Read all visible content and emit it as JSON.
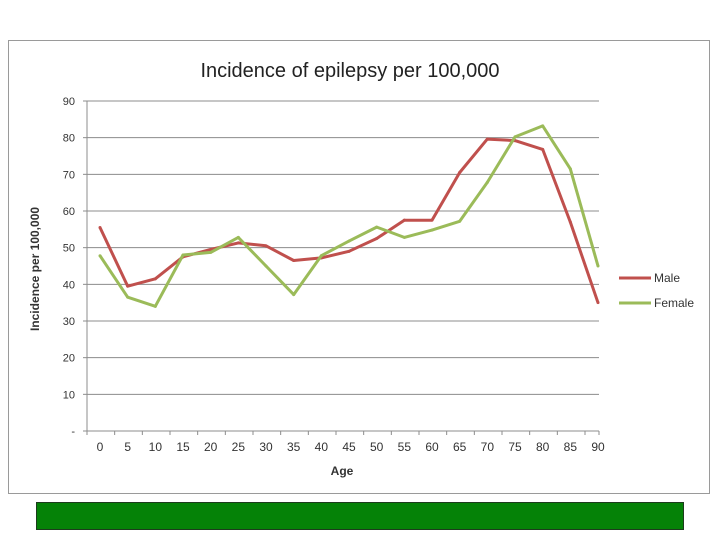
{
  "chart_data": {
    "type": "line",
    "title": "Incidence of epilepsy per 100,000",
    "xlabel": "Age",
    "ylabel": "Incidence per 100,000",
    "categories": [
      "0",
      "5",
      "10",
      "15",
      "20",
      "25",
      "30",
      "35",
      "40",
      "45",
      "50",
      "55",
      "60",
      "65",
      "70",
      "75",
      "80",
      "85",
      "90"
    ],
    "ylim": [
      0,
      90
    ],
    "y_ticks": [
      "-",
      "10",
      "20",
      "30",
      "40",
      "50",
      "60",
      "70",
      "80",
      "90"
    ],
    "grid": true,
    "legend_position": "right",
    "series": [
      {
        "name": "Male",
        "color": "#c0504d",
        "values": [
          55.5,
          39.5,
          41.5,
          47.5,
          49.5,
          51.3,
          50.5,
          46.5,
          47.2,
          49.0,
          52.5,
          57.5,
          57.5,
          70.5,
          79.6,
          79.2,
          76.8,
          57.0,
          35.0
        ]
      },
      {
        "name": "Female",
        "color": "#9bbb59",
        "values": [
          47.8,
          36.5,
          34.0,
          48.0,
          48.7,
          52.8,
          45.0,
          37.2,
          47.8,
          51.8,
          55.6,
          52.8,
          54.8,
          57.2,
          67.8,
          80.2,
          83.2,
          71.5,
          45.0
        ]
      }
    ]
  }
}
